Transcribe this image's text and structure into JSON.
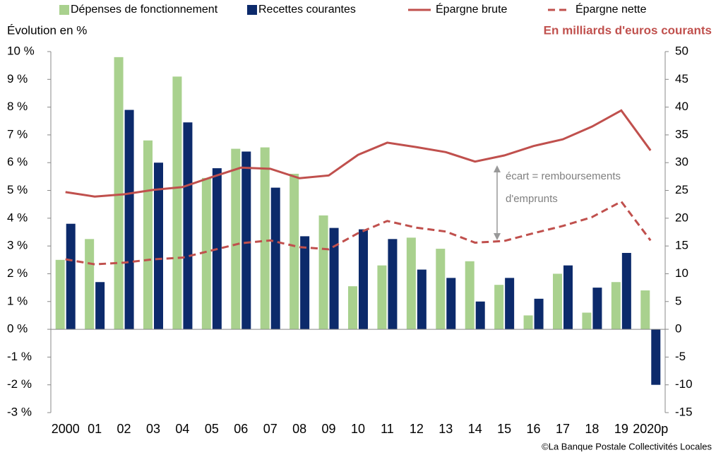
{
  "chart_data": {
    "type": "bar",
    "y_axis_title": "Évolution  en %",
    "y2_axis_title": "En milliards d'euros courants",
    "categories": [
      "2000",
      "01",
      "02",
      "03",
      "04",
      "05",
      "06",
      "07",
      "08",
      "09",
      "10",
      "11",
      "12",
      "13",
      "14",
      "15",
      "16",
      "17",
      "18",
      "19",
      "2020p"
    ],
    "series": [
      {
        "name": "Dépenses de fonctionnement",
        "type": "bar",
        "color": "#a9d18e",
        "values": [
          2.5,
          3.25,
          9.8,
          6.8,
          9.1,
          5.45,
          6.5,
          6.55,
          5.6,
          4.1,
          1.55,
          2.3,
          3.3,
          2.9,
          2.45,
          1.6,
          0.5,
          2.0,
          0.6,
          1.7,
          1.4
        ]
      },
      {
        "name": "Recettes courantes",
        "type": "bar",
        "color": "#0c2a6b",
        "values": [
          3.8,
          1.7,
          7.9,
          6.0,
          7.45,
          5.8,
          6.4,
          5.1,
          3.35,
          3.65,
          3.6,
          3.25,
          2.15,
          1.85,
          1.0,
          1.85,
          1.1,
          2.3,
          1.5,
          2.75,
          -2.0
        ]
      },
      {
        "name": "Épargne brute",
        "type": "line",
        "axis": "y2",
        "color": "#c0504d",
        "dash": false,
        "values": [
          24.7,
          23.9,
          24.3,
          25.1,
          25.6,
          27.4,
          29.1,
          28.9,
          27.2,
          27.7,
          31.4,
          33.6,
          32.8,
          31.9,
          30.2,
          31.3,
          33.0,
          34.2,
          36.5,
          39.4,
          32.2
        ]
      },
      {
        "name": "Épargne nette",
        "type": "line",
        "axis": "y2",
        "color": "#c0504d",
        "dash": true,
        "values": [
          12.6,
          11.7,
          12.0,
          12.6,
          12.9,
          14.2,
          15.5,
          16.0,
          14.8,
          14.4,
          17.3,
          19.5,
          18.3,
          17.6,
          15.6,
          15.9,
          17.3,
          18.6,
          20.2,
          23.0,
          16.0
        ]
      }
    ],
    "ylim": [
      -3,
      10
    ],
    "yticks": [
      {
        "value": 10,
        "label": "10 %"
      },
      {
        "value": 9,
        "label": "9 %"
      },
      {
        "value": 8,
        "label": "8 %"
      },
      {
        "value": 7,
        "label": "7 %"
      },
      {
        "value": 6,
        "label": "6 %"
      },
      {
        "value": 5,
        "label": "5 %"
      },
      {
        "value": 4,
        "label": "4 %"
      },
      {
        "value": 3,
        "label": "3 %"
      },
      {
        "value": 2,
        "label": "2 %"
      },
      {
        "value": 1,
        "label": "1 %"
      },
      {
        "value": 0,
        "label": "0 %"
      },
      {
        "value": -1,
        "label": "-1 %"
      },
      {
        "value": -2,
        "label": "-2 %"
      },
      {
        "value": -3,
        "label": "-3 %"
      }
    ],
    "y2lim": [
      -15,
      50
    ],
    "y2ticks": [
      50,
      45,
      40,
      35,
      30,
      25,
      20,
      15,
      10,
      5,
      0,
      -5,
      -10,
      -15
    ],
    "annotation": [
      "écart = remboursements",
      "d'emprunts"
    ],
    "source": "©La Banque Postale Collectivités Locales",
    "legend": "top",
    "grid": false
  }
}
